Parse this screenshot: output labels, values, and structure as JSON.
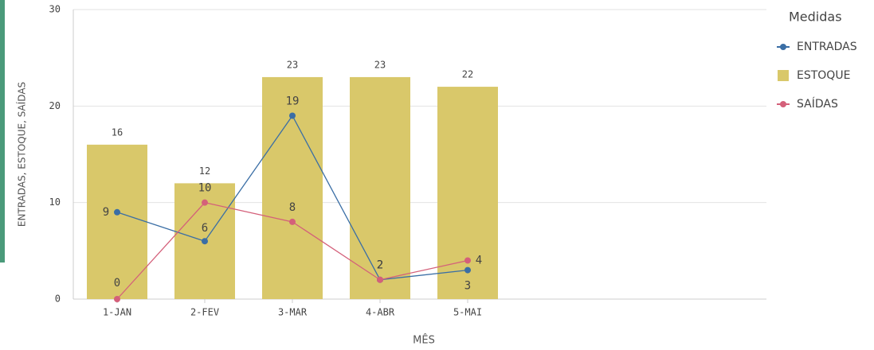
{
  "chart_data": {
    "type": "combo",
    "legend_title": "Medidas",
    "xlabel": "MÊS",
    "ylabel": "ENTRADAS, ESTOQUE, SAÍDAS",
    "categories": [
      "1-JAN",
      "2-FEV",
      "3-MAR",
      "4-ABR",
      "5-MAI"
    ],
    "series": [
      {
        "name": "ENTRADAS",
        "type": "line",
        "color": "#3a6ea5",
        "values": [
          9,
          6,
          19,
          2,
          3
        ]
      },
      {
        "name": "ESTOQUE",
        "type": "bar",
        "color": "#d9c86a",
        "values": [
          16,
          12,
          23,
          23,
          22
        ]
      },
      {
        "name": "SAÍDAS",
        "type": "line",
        "color": "#d4607a",
        "values": [
          0,
          10,
          8,
          2,
          4
        ]
      }
    ],
    "ylim": [
      0,
      30
    ],
    "yticks": [
      0,
      10,
      20,
      30
    ],
    "grid": true,
    "legend": "right"
  }
}
